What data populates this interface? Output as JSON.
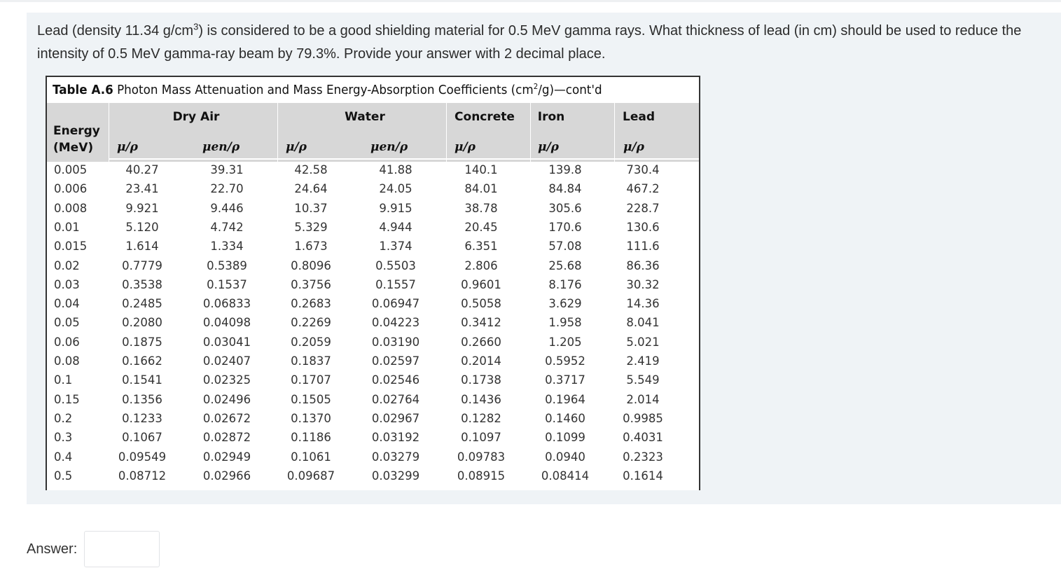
{
  "question": {
    "text_before_sup": "Lead (density 11.34 g/cm",
    "sup": "3",
    "text_after_sup": ") is considered to be a good shielding material for 0.5 MeV gamma rays. What thickness of lead (in cm) should be used to reduce the intensity of 0.5 MeV gamma-ray beam by 79.3%.  Provide your answer with 2 decimal place."
  },
  "table": {
    "caption_label": "Table A.6",
    "caption_text_before_sup": "Photon Mass Attenuation and Mass Energy-Absorption Coefficients (cm",
    "caption_sup": "2",
    "caption_text_after_sup": "/g)—cont'd",
    "energy_header_line1": "Energy",
    "energy_header_line2": "(MeV)",
    "groups": [
      "Dry Air",
      "Water",
      "Concrete",
      "Iron",
      "Lead"
    ],
    "subheaders": [
      "μ/ρ",
      "μen/ρ",
      "μ/ρ",
      "μen/ρ",
      "μ/ρ",
      "μ/ρ",
      "μ/ρ"
    ],
    "rows": [
      [
        "0.005",
        "40.27",
        "39.31",
        "42.58",
        "41.88",
        "140.1",
        "139.8",
        "730.4"
      ],
      [
        "0.006",
        "23.41",
        "22.70",
        "24.64",
        "24.05",
        "84.01",
        "84.84",
        "467.2"
      ],
      [
        "0.008",
        "9.921",
        "9.446",
        "10.37",
        "9.915",
        "38.78",
        "305.6",
        "228.7"
      ],
      [
        "0.01",
        "5.120",
        "4.742",
        "5.329",
        "4.944",
        "20.45",
        "170.6",
        "130.6"
      ],
      [
        "0.015",
        "1.614",
        "1.334",
        "1.673",
        "1.374",
        "6.351",
        "57.08",
        "111.6"
      ],
      [
        "0.02",
        "0.7779",
        "0.5389",
        "0.8096",
        "0.5503",
        "2.806",
        "25.68",
        "86.36"
      ],
      [
        "0.03",
        "0.3538",
        "0.1537",
        "0.3756",
        "0.1557",
        "0.9601",
        "8.176",
        "30.32"
      ],
      [
        "0.04",
        "0.2485",
        "0.06833",
        "0.2683",
        "0.06947",
        "0.5058",
        "3.629",
        "14.36"
      ],
      [
        "0.05",
        "0.2080",
        "0.04098",
        "0.2269",
        "0.04223",
        "0.3412",
        "1.958",
        "8.041"
      ],
      [
        "0.06",
        "0.1875",
        "0.03041",
        "0.2059",
        "0.03190",
        "0.2660",
        "1.205",
        "5.021"
      ],
      [
        "0.08",
        "0.1662",
        "0.02407",
        "0.1837",
        "0.02597",
        "0.2014",
        "0.5952",
        "2.419"
      ],
      [
        "0.1",
        "0.1541",
        "0.02325",
        "0.1707",
        "0.02546",
        "0.1738",
        "0.3717",
        "5.549"
      ],
      [
        "0.15",
        "0.1356",
        "0.02496",
        "0.1505",
        "0.02764",
        "0.1436",
        "0.1964",
        "2.014"
      ],
      [
        "0.2",
        "0.1233",
        "0.02672",
        "0.1370",
        "0.02967",
        "0.1282",
        "0.1460",
        "0.9985"
      ],
      [
        "0.3",
        "0.1067",
        "0.02872",
        "0.1186",
        "0.03192",
        "0.1097",
        "0.1099",
        "0.4031"
      ],
      [
        "0.4",
        "0.09549",
        "0.02949",
        "0.1061",
        "0.03279",
        "0.09783",
        "0.0940",
        "0.2323"
      ],
      [
        "0.5",
        "0.08712",
        "0.02966",
        "0.09687",
        "0.03299",
        "0.08915",
        "0.08414",
        "0.1614"
      ]
    ]
  },
  "answer": {
    "label": "Answer:",
    "value": ""
  }
}
